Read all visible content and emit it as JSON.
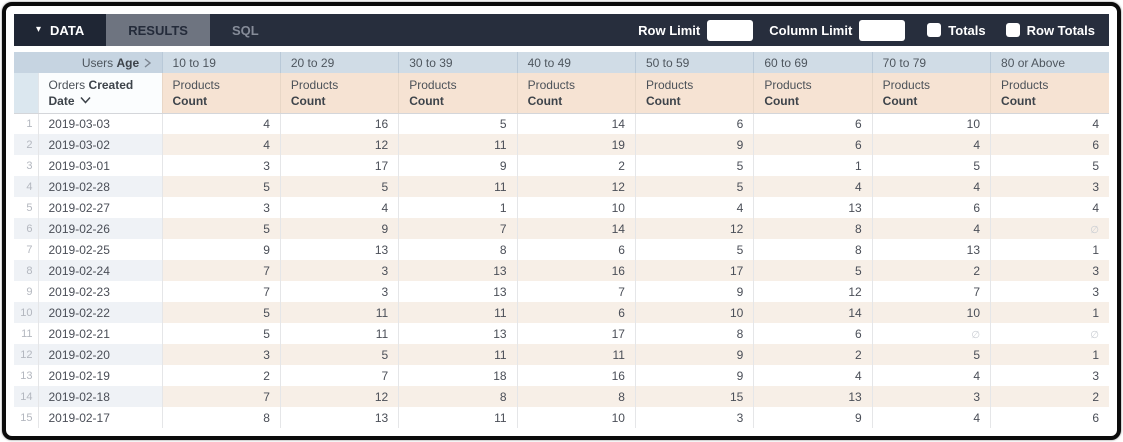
{
  "topbar": {
    "tabs": [
      {
        "label": "DATA"
      },
      {
        "label": "RESULTS"
      },
      {
        "label": "SQL"
      }
    ],
    "row_limit_label": "Row Limit",
    "row_limit_value": "",
    "column_limit_label": "Column Limit",
    "column_limit_value": "",
    "totals_label": "Totals",
    "totals_checked": false,
    "row_totals_label": "Row Totals",
    "row_totals_checked": false
  },
  "table": {
    "pivot_header": {
      "prefix": "Users",
      "field": "Age"
    },
    "pivot_values": [
      "10 to 19",
      "20 to 29",
      "30 to 39",
      "40 to 49",
      "50 to 59",
      "60 to 69",
      "70 to 79",
      "80 or Above"
    ],
    "row_dimension": {
      "prefix": "Orders",
      "bold_line1": "Created",
      "bold_line2": "Date"
    },
    "measure": {
      "prefix": "Products",
      "field": "Count"
    },
    "null_symbol": "∅",
    "rows": [
      {
        "index": 1,
        "date": "2019-03-03",
        "values": [
          4,
          16,
          5,
          14,
          6,
          6,
          10,
          4
        ]
      },
      {
        "index": 2,
        "date": "2019-03-02",
        "values": [
          4,
          12,
          11,
          19,
          9,
          6,
          4,
          6
        ]
      },
      {
        "index": 3,
        "date": "2019-03-01",
        "values": [
          3,
          17,
          9,
          2,
          5,
          1,
          5,
          5
        ]
      },
      {
        "index": 4,
        "date": "2019-02-28",
        "values": [
          5,
          5,
          11,
          12,
          5,
          4,
          4,
          3
        ]
      },
      {
        "index": 5,
        "date": "2019-02-27",
        "values": [
          3,
          4,
          1,
          10,
          4,
          13,
          6,
          4
        ]
      },
      {
        "index": 6,
        "date": "2019-02-26",
        "values": [
          5,
          9,
          7,
          14,
          12,
          8,
          4,
          null
        ]
      },
      {
        "index": 7,
        "date": "2019-02-25",
        "values": [
          9,
          13,
          8,
          6,
          5,
          8,
          13,
          1
        ]
      },
      {
        "index": 8,
        "date": "2019-02-24",
        "values": [
          7,
          3,
          13,
          16,
          17,
          5,
          2,
          3
        ]
      },
      {
        "index": 9,
        "date": "2019-02-23",
        "values": [
          7,
          3,
          13,
          7,
          9,
          12,
          7,
          3
        ]
      },
      {
        "index": 10,
        "date": "2019-02-22",
        "values": [
          5,
          11,
          11,
          6,
          10,
          14,
          10,
          1
        ]
      },
      {
        "index": 11,
        "date": "2019-02-21",
        "values": [
          5,
          11,
          13,
          17,
          8,
          6,
          null,
          null
        ]
      },
      {
        "index": 12,
        "date": "2019-02-20",
        "values": [
          3,
          5,
          11,
          11,
          9,
          2,
          5,
          1
        ]
      },
      {
        "index": 13,
        "date": "2019-02-19",
        "values": [
          2,
          7,
          18,
          16,
          9,
          4,
          4,
          3
        ]
      },
      {
        "index": 14,
        "date": "2019-02-18",
        "values": [
          7,
          12,
          8,
          8,
          15,
          13,
          3,
          2
        ]
      },
      {
        "index": 15,
        "date": "2019-02-17",
        "values": [
          8,
          13,
          11,
          10,
          3,
          9,
          4,
          6
        ]
      }
    ]
  },
  "colors": {
    "topbar_bg": "#272e3d",
    "active_tab_bg": "#1f2634",
    "results_tab_bg": "#6e7480",
    "pivot_header_bg": "#d0dce6",
    "corner_header_bg": "#c6d4e1",
    "measure_header_bg": "#f6e3d3",
    "gutter_header_bg": "#dbe7ef",
    "even_row_measure_bg": "#f7efe7",
    "even_row_dimension_bg": "#eff2f6"
  }
}
